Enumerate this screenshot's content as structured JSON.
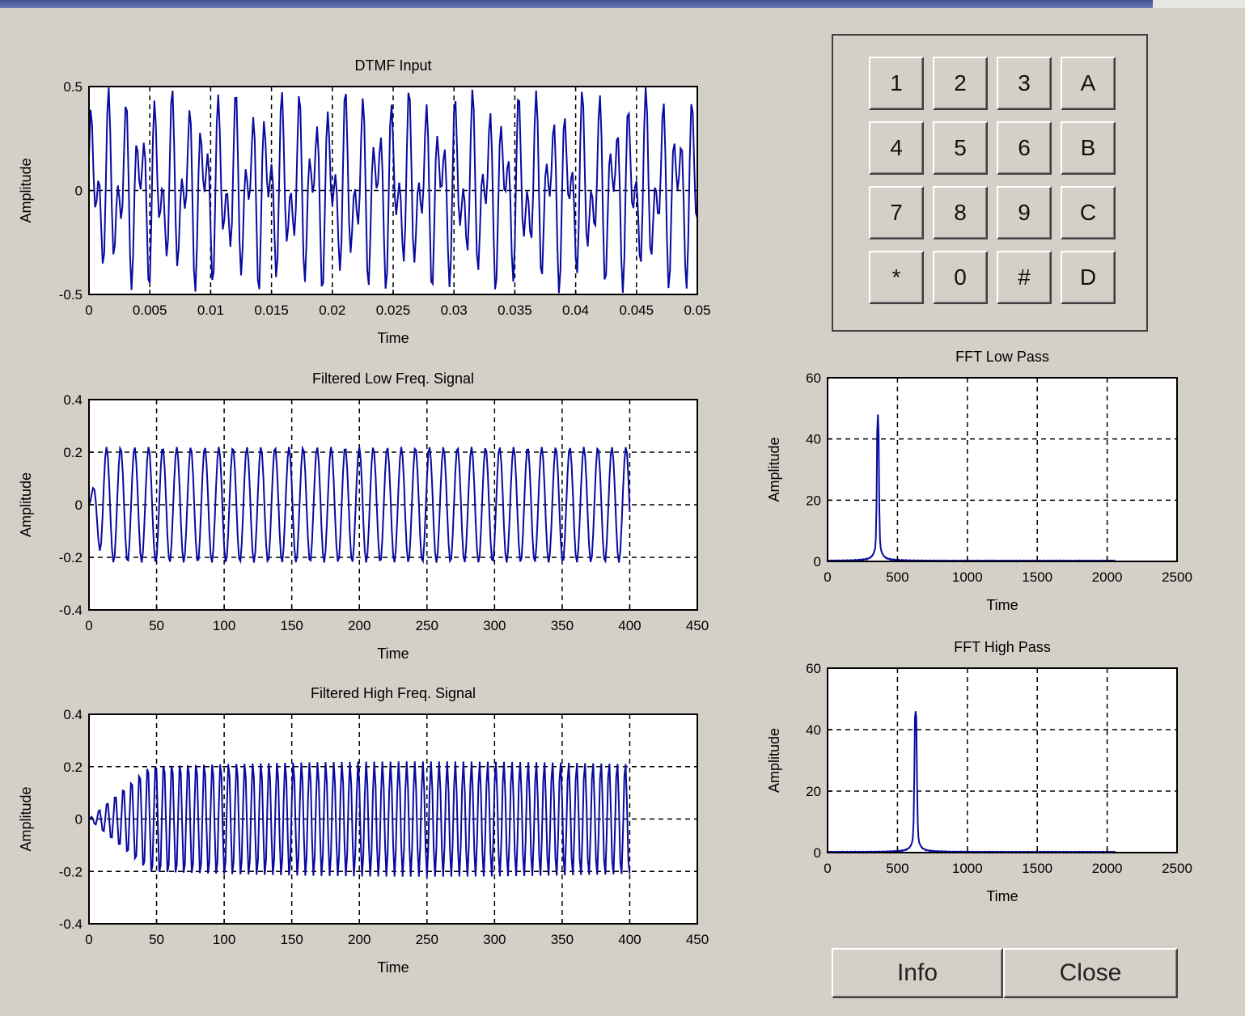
{
  "colors": {
    "background": "#d4d0c8",
    "trace": "#0a0aa0",
    "axes_bg": "#ffffff"
  },
  "keypad": {
    "keys": [
      "1",
      "2",
      "3",
      "A",
      "4",
      "5",
      "6",
      "B",
      "7",
      "8",
      "9",
      "C",
      "*",
      "0",
      "#",
      "D"
    ]
  },
  "buttons": {
    "info": "Info",
    "close": "Close"
  },
  "chart_data": [
    {
      "id": "dtmf",
      "type": "line",
      "title": "DTMF Input",
      "xlabel": "Time",
      "ylabel": "Amplitude",
      "xlim": [
        0,
        0.05
      ],
      "ylim": [
        -0.5,
        0.5
      ],
      "xticks": [
        0,
        0.005,
        0.01,
        0.015,
        0.02,
        0.025,
        0.03,
        0.035,
        0.04,
        0.045,
        0.05
      ],
      "xticklabels": [
        "0",
        "0.005",
        "0.01",
        "0.015",
        "0.02",
        "0.025",
        "0.03",
        "0.035",
        "0.04",
        "0.045",
        "0.05"
      ],
      "yticks": [
        -0.5,
        0,
        0.5
      ],
      "yticklabels": [
        "-0.5",
        "0",
        "0.5"
      ],
      "grid": true,
      "signal": {
        "kind": "dtmf",
        "f1": 770,
        "f2": 1336,
        "amp1": 0.25,
        "amp2": 0.25,
        "t_end": 0.05,
        "n": 400
      }
    },
    {
      "id": "low",
      "type": "line",
      "title": "Filtered Low Freq. Signal",
      "xlabel": "Time",
      "ylabel": "Amplitude",
      "xlim": [
        0,
        450
      ],
      "ylim": [
        -0.4,
        0.4
      ],
      "xticks": [
        0,
        50,
        100,
        150,
        200,
        250,
        300,
        350,
        400,
        450
      ],
      "xticklabels": [
        "0",
        "50",
        "100",
        "150",
        "200",
        "250",
        "300",
        "350",
        "400",
        "450"
      ],
      "yticks": [
        -0.4,
        -0.2,
        0,
        0.2,
        0.4
      ],
      "yticklabels": [
        "-0.4",
        "-0.2",
        "0",
        "0.2",
        "0.4"
      ],
      "grid": true,
      "signal": {
        "kind": "sine",
        "amplitude": 0.22,
        "cycles_per_sample": 0.0963,
        "samples": 400,
        "rise_samples": 10
      }
    },
    {
      "id": "high",
      "type": "line",
      "title": "Filtered High Freq. Signal",
      "xlabel": "Time",
      "ylabel": "Amplitude",
      "xlim": [
        0,
        450
      ],
      "ylim": [
        -0.4,
        0.4
      ],
      "xticks": [
        0,
        50,
        100,
        150,
        200,
        250,
        300,
        350,
        400,
        450
      ],
      "xticklabels": [
        "0",
        "50",
        "100",
        "150",
        "200",
        "250",
        "300",
        "350",
        "400",
        "450"
      ],
      "yticks": [
        -0.4,
        -0.2,
        0,
        0.2,
        0.4
      ],
      "yticklabels": [
        "-0.4",
        "-0.2",
        "0",
        "0.2",
        "0.4"
      ],
      "grid": true,
      "signal": {
        "kind": "sine",
        "amplitude": 0.22,
        "cycles_per_sample": 0.167,
        "samples": 400,
        "rise_samples": 45
      }
    },
    {
      "id": "fftlow",
      "type": "line",
      "title": "FFT Low Pass",
      "xlabel": "Time",
      "ylabel": "Amplitude",
      "xlim": [
        0,
        2500
      ],
      "ylim": [
        0,
        60
      ],
      "xticks": [
        0,
        500,
        1000,
        1500,
        2000,
        2500
      ],
      "xticklabels": [
        "0",
        "500",
        "1000",
        "1500",
        "2000",
        "2500"
      ],
      "yticks": [
        0,
        20,
        40,
        60
      ],
      "yticklabels": [
        "0",
        "20",
        "40",
        "60"
      ],
      "grid": true,
      "signal": {
        "kind": "peak",
        "center": 360,
        "height": 48,
        "width": 6,
        "x_end": 2060
      }
    },
    {
      "id": "ffthigh",
      "type": "line",
      "title": "FFT High Pass",
      "xlabel": "Time",
      "ylabel": "Amplitude",
      "xlim": [
        0,
        2500
      ],
      "ylim": [
        0,
        60
      ],
      "xticks": [
        0,
        500,
        1000,
        1500,
        2000,
        2500
      ],
      "xticklabels": [
        "0",
        "500",
        "1000",
        "1500",
        "2000",
        "2500"
      ],
      "yticks": [
        0,
        20,
        40,
        60
      ],
      "yticklabels": [
        "0",
        "20",
        "40",
        "60"
      ],
      "grid": true,
      "signal": {
        "kind": "peak",
        "center": 630,
        "height": 46,
        "width": 7,
        "x_end": 2060
      }
    }
  ]
}
